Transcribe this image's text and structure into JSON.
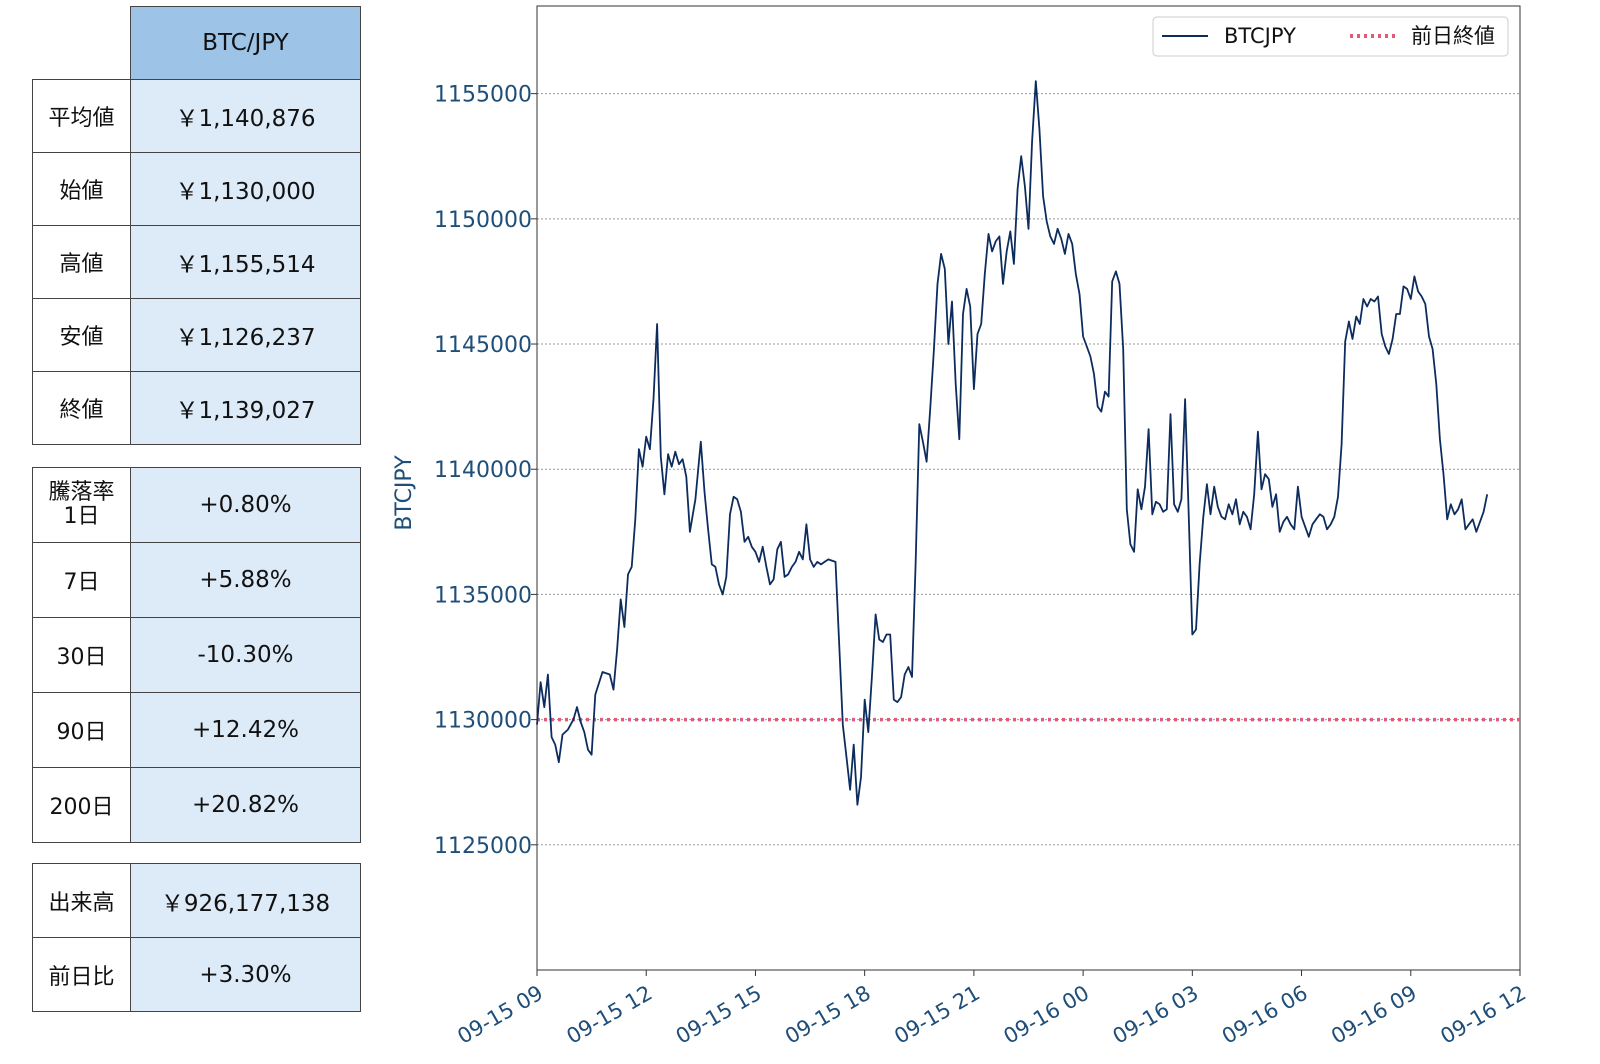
{
  "summary": {
    "pair_header": "BTC/JPY",
    "rows": [
      {
        "label": "平均値",
        "value": "￥1,140,876"
      },
      {
        "label": "始値",
        "value": "￥1,130,000"
      },
      {
        "label": "高値",
        "value": "￥1,155,514"
      },
      {
        "label": "安値",
        "value": "￥1,126,237"
      },
      {
        "label": "終値",
        "value": "￥1,139,027"
      }
    ]
  },
  "changes": {
    "rows": [
      {
        "label": "騰落率\n1日",
        "value": "+0.80%"
      },
      {
        "label": "7日",
        "value": "+5.88%"
      },
      {
        "label": "30日",
        "value": "-10.30%"
      },
      {
        "label": "90日",
        "value": "+12.42%"
      },
      {
        "label": "200日",
        "value": "+20.82%"
      }
    ]
  },
  "volume": {
    "rows": [
      {
        "label": "出来高",
        "value": "￥926,177,138"
      },
      {
        "label": "前日比",
        "value": "+3.30%"
      }
    ]
  },
  "chart_data": {
    "type": "line",
    "ylabel": "BTCJPY",
    "xlabel": "",
    "ylim": [
      1120000,
      1158500
    ],
    "y_ticks": [
      1125000,
      1130000,
      1135000,
      1140000,
      1145000,
      1150000,
      1155000
    ],
    "x_ticks": [
      "09-15 09",
      "09-15 12",
      "09-15 15",
      "09-15 18",
      "09-15 21",
      "09-16 00",
      "09-16 03",
      "09-16 06",
      "09-16 09",
      "09-16 12"
    ],
    "xlim_hours": [
      0,
      27
    ],
    "grid": "horizontal dotted",
    "legend_position": "top-right",
    "series": [
      {
        "name": "BTCJPY",
        "color": "#0d2c5e",
        "style": "solid",
        "points": [
          [
            0.0,
            1129800
          ],
          [
            0.1,
            1131500
          ],
          [
            0.2,
            1130500
          ],
          [
            0.3,
            1131800
          ],
          [
            0.4,
            1129300
          ],
          [
            0.5,
            1129000
          ],
          [
            0.6,
            1128300
          ],
          [
            0.7,
            1129400
          ],
          [
            0.85,
            1129600
          ],
          [
            1.0,
            1130000
          ],
          [
            1.1,
            1130500
          ],
          [
            1.2,
            1129900
          ],
          [
            1.3,
            1129500
          ],
          [
            1.4,
            1128800
          ],
          [
            1.5,
            1128600
          ],
          [
            1.6,
            1131000
          ],
          [
            1.8,
            1131900
          ],
          [
            2.0,
            1131800
          ],
          [
            2.1,
            1131200
          ],
          [
            2.2,
            1132800
          ],
          [
            2.3,
            1134800
          ],
          [
            2.4,
            1133700
          ],
          [
            2.5,
            1135800
          ],
          [
            2.6,
            1136100
          ],
          [
            2.7,
            1138000
          ],
          [
            2.8,
            1140800
          ],
          [
            2.9,
            1140100
          ],
          [
            3.0,
            1141300
          ],
          [
            3.1,
            1140800
          ],
          [
            3.2,
            1142800
          ],
          [
            3.3,
            1145800
          ],
          [
            3.4,
            1140500
          ],
          [
            3.5,
            1139000
          ],
          [
            3.6,
            1140600
          ],
          [
            3.7,
            1140100
          ],
          [
            3.8,
            1140700
          ],
          [
            3.9,
            1140200
          ],
          [
            4.0,
            1140400
          ],
          [
            4.1,
            1139700
          ],
          [
            4.2,
            1137500
          ],
          [
            4.35,
            1138800
          ],
          [
            4.5,
            1141100
          ],
          [
            4.6,
            1139100
          ],
          [
            4.7,
            1137600
          ],
          [
            4.8,
            1136200
          ],
          [
            4.9,
            1136100
          ],
          [
            5.0,
            1135400
          ],
          [
            5.1,
            1135000
          ],
          [
            5.2,
            1135700
          ],
          [
            5.3,
            1138200
          ],
          [
            5.4,
            1138900
          ],
          [
            5.5,
            1138800
          ],
          [
            5.6,
            1138300
          ],
          [
            5.7,
            1137100
          ],
          [
            5.8,
            1137300
          ],
          [
            5.9,
            1136900
          ],
          [
            6.0,
            1136700
          ],
          [
            6.1,
            1136300
          ],
          [
            6.2,
            1136900
          ],
          [
            6.3,
            1136100
          ],
          [
            6.4,
            1135400
          ],
          [
            6.5,
            1135600
          ],
          [
            6.6,
            1136800
          ],
          [
            6.7,
            1137100
          ],
          [
            6.8,
            1135700
          ],
          [
            6.9,
            1135800
          ],
          [
            7.0,
            1136100
          ],
          [
            7.1,
            1136300
          ],
          [
            7.2,
            1136700
          ],
          [
            7.3,
            1136400
          ],
          [
            7.4,
            1137800
          ],
          [
            7.5,
            1136400
          ],
          [
            7.6,
            1136100
          ],
          [
            7.7,
            1136300
          ],
          [
            7.8,
            1136200
          ],
          [
            7.9,
            1136300
          ],
          [
            8.0,
            1136400
          ],
          [
            8.2,
            1136300
          ],
          [
            8.4,
            1129800
          ],
          [
            8.5,
            1128500
          ],
          [
            8.6,
            1127200
          ],
          [
            8.7,
            1129000
          ],
          [
            8.8,
            1126600
          ],
          [
            8.9,
            1127700
          ],
          [
            9.0,
            1130800
          ],
          [
            9.1,
            1129500
          ],
          [
            9.2,
            1131700
          ],
          [
            9.3,
            1134200
          ],
          [
            9.4,
            1133200
          ],
          [
            9.5,
            1133100
          ],
          [
            9.6,
            1133400
          ],
          [
            9.7,
            1133400
          ],
          [
            9.8,
            1130800
          ],
          [
            9.9,
            1130700
          ],
          [
            10.0,
            1130900
          ],
          [
            10.1,
            1131800
          ],
          [
            10.2,
            1132100
          ],
          [
            10.3,
            1131700
          ],
          [
            10.4,
            1136200
          ],
          [
            10.5,
            1141800
          ],
          [
            10.6,
            1141100
          ],
          [
            10.7,
            1140300
          ],
          [
            10.8,
            1142400
          ],
          [
            10.9,
            1144700
          ],
          [
            11.0,
            1147400
          ],
          [
            11.1,
            1148600
          ],
          [
            11.2,
            1148000
          ],
          [
            11.3,
            1145000
          ],
          [
            11.4,
            1146700
          ],
          [
            11.5,
            1143400
          ],
          [
            11.6,
            1141200
          ],
          [
            11.7,
            1146200
          ],
          [
            11.8,
            1147200
          ],
          [
            11.9,
            1146500
          ],
          [
            12.0,
            1143200
          ],
          [
            12.1,
            1145400
          ],
          [
            12.2,
            1145800
          ],
          [
            12.3,
            1147800
          ],
          [
            12.4,
            1149400
          ],
          [
            12.5,
            1148700
          ],
          [
            12.6,
            1149100
          ],
          [
            12.7,
            1149300
          ],
          [
            12.8,
            1147400
          ],
          [
            12.9,
            1148700
          ],
          [
            13.0,
            1149500
          ],
          [
            13.1,
            1148200
          ],
          [
            13.2,
            1151200
          ],
          [
            13.3,
            1152500
          ],
          [
            13.4,
            1151300
          ],
          [
            13.5,
            1149600
          ],
          [
            13.6,
            1153100
          ],
          [
            13.7,
            1155500
          ],
          [
            13.8,
            1153600
          ],
          [
            13.9,
            1150900
          ],
          [
            14.0,
            1149900
          ],
          [
            14.1,
            1149300
          ],
          [
            14.2,
            1149000
          ],
          [
            14.3,
            1149600
          ],
          [
            14.4,
            1149200
          ],
          [
            14.5,
            1148600
          ],
          [
            14.6,
            1149400
          ],
          [
            14.7,
            1149000
          ],
          [
            14.8,
            1147800
          ],
          [
            14.9,
            1147000
          ],
          [
            15.0,
            1145300
          ],
          [
            15.1,
            1144900
          ],
          [
            15.2,
            1144500
          ],
          [
            15.3,
            1143800
          ],
          [
            15.4,
            1142500
          ],
          [
            15.5,
            1142300
          ],
          [
            15.6,
            1143100
          ],
          [
            15.7,
            1142900
          ],
          [
            15.8,
            1147500
          ],
          [
            15.9,
            1147900
          ],
          [
            16.0,
            1147400
          ],
          [
            16.1,
            1144800
          ],
          [
            16.2,
            1138400
          ],
          [
            16.3,
            1137000
          ],
          [
            16.4,
            1136700
          ],
          [
            16.5,
            1139200
          ],
          [
            16.6,
            1138400
          ],
          [
            16.7,
            1139300
          ],
          [
            16.8,
            1141600
          ],
          [
            16.9,
            1138200
          ],
          [
            17.0,
            1138700
          ],
          [
            17.1,
            1138600
          ],
          [
            17.2,
            1138300
          ],
          [
            17.3,
            1138400
          ],
          [
            17.4,
            1142200
          ],
          [
            17.5,
            1138600
          ],
          [
            17.6,
            1138300
          ],
          [
            17.7,
            1138800
          ],
          [
            17.8,
            1142800
          ],
          [
            17.9,
            1138200
          ],
          [
            18.0,
            1133400
          ],
          [
            18.1,
            1133600
          ],
          [
            18.2,
            1136200
          ],
          [
            18.3,
            1138100
          ],
          [
            18.4,
            1139400
          ],
          [
            18.5,
            1138200
          ],
          [
            18.6,
            1139300
          ],
          [
            18.7,
            1138500
          ],
          [
            18.8,
            1138100
          ],
          [
            18.9,
            1138000
          ],
          [
            19.0,
            1138600
          ],
          [
            19.1,
            1138200
          ],
          [
            19.2,
            1138800
          ],
          [
            19.3,
            1137800
          ],
          [
            19.4,
            1138300
          ],
          [
            19.5,
            1138100
          ],
          [
            19.6,
            1137600
          ],
          [
            19.7,
            1139000
          ],
          [
            19.8,
            1141500
          ],
          [
            19.9,
            1139200
          ],
          [
            20.0,
            1139800
          ],
          [
            20.1,
            1139600
          ],
          [
            20.2,
            1138500
          ],
          [
            20.3,
            1139000
          ],
          [
            20.4,
            1137500
          ],
          [
            20.5,
            1137900
          ],
          [
            20.6,
            1138100
          ],
          [
            20.7,
            1137800
          ],
          [
            20.8,
            1137600
          ],
          [
            20.9,
            1139300
          ],
          [
            21.0,
            1138100
          ],
          [
            21.1,
            1137700
          ],
          [
            21.2,
            1137300
          ],
          [
            21.3,
            1137800
          ],
          [
            21.4,
            1138000
          ],
          [
            21.5,
            1138200
          ],
          [
            21.6,
            1138100
          ],
          [
            21.7,
            1137600
          ],
          [
            21.8,
            1137800
          ],
          [
            21.9,
            1138100
          ],
          [
            22.0,
            1138900
          ],
          [
            22.1,
            1141000
          ],
          [
            22.2,
            1145100
          ],
          [
            22.3,
            1145900
          ],
          [
            22.4,
            1145200
          ],
          [
            22.5,
            1146100
          ],
          [
            22.6,
            1145800
          ],
          [
            22.7,
            1146800
          ],
          [
            22.8,
            1146500
          ],
          [
            22.9,
            1146800
          ],
          [
            23.0,
            1146700
          ],
          [
            23.1,
            1146900
          ],
          [
            23.2,
            1145400
          ],
          [
            23.3,
            1144900
          ],
          [
            23.4,
            1144600
          ],
          [
            23.5,
            1145200
          ],
          [
            23.6,
            1146200
          ],
          [
            23.7,
            1146200
          ],
          [
            23.8,
            1147300
          ],
          [
            23.9,
            1147200
          ],
          [
            24.0,
            1146800
          ],
          [
            24.1,
            1147700
          ],
          [
            24.2,
            1147100
          ],
          [
            24.3,
            1146900
          ],
          [
            24.4,
            1146600
          ],
          [
            24.5,
            1145300
          ],
          [
            24.6,
            1144800
          ],
          [
            24.7,
            1143400
          ],
          [
            24.8,
            1141200
          ],
          [
            24.9,
            1139800
          ],
          [
            25.0,
            1138000
          ],
          [
            25.1,
            1138600
          ],
          [
            25.2,
            1138200
          ],
          [
            25.3,
            1138400
          ],
          [
            25.4,
            1138800
          ],
          [
            25.5,
            1137600
          ],
          [
            25.6,
            1137800
          ],
          [
            25.7,
            1138000
          ],
          [
            25.8,
            1137500
          ],
          [
            25.9,
            1137900
          ],
          [
            26.0,
            1138300
          ],
          [
            26.1,
            1139000
          ]
        ]
      },
      {
        "name": "前日終値",
        "color": "#e05a7a",
        "style": "dotted",
        "value": 1130000
      }
    ]
  }
}
